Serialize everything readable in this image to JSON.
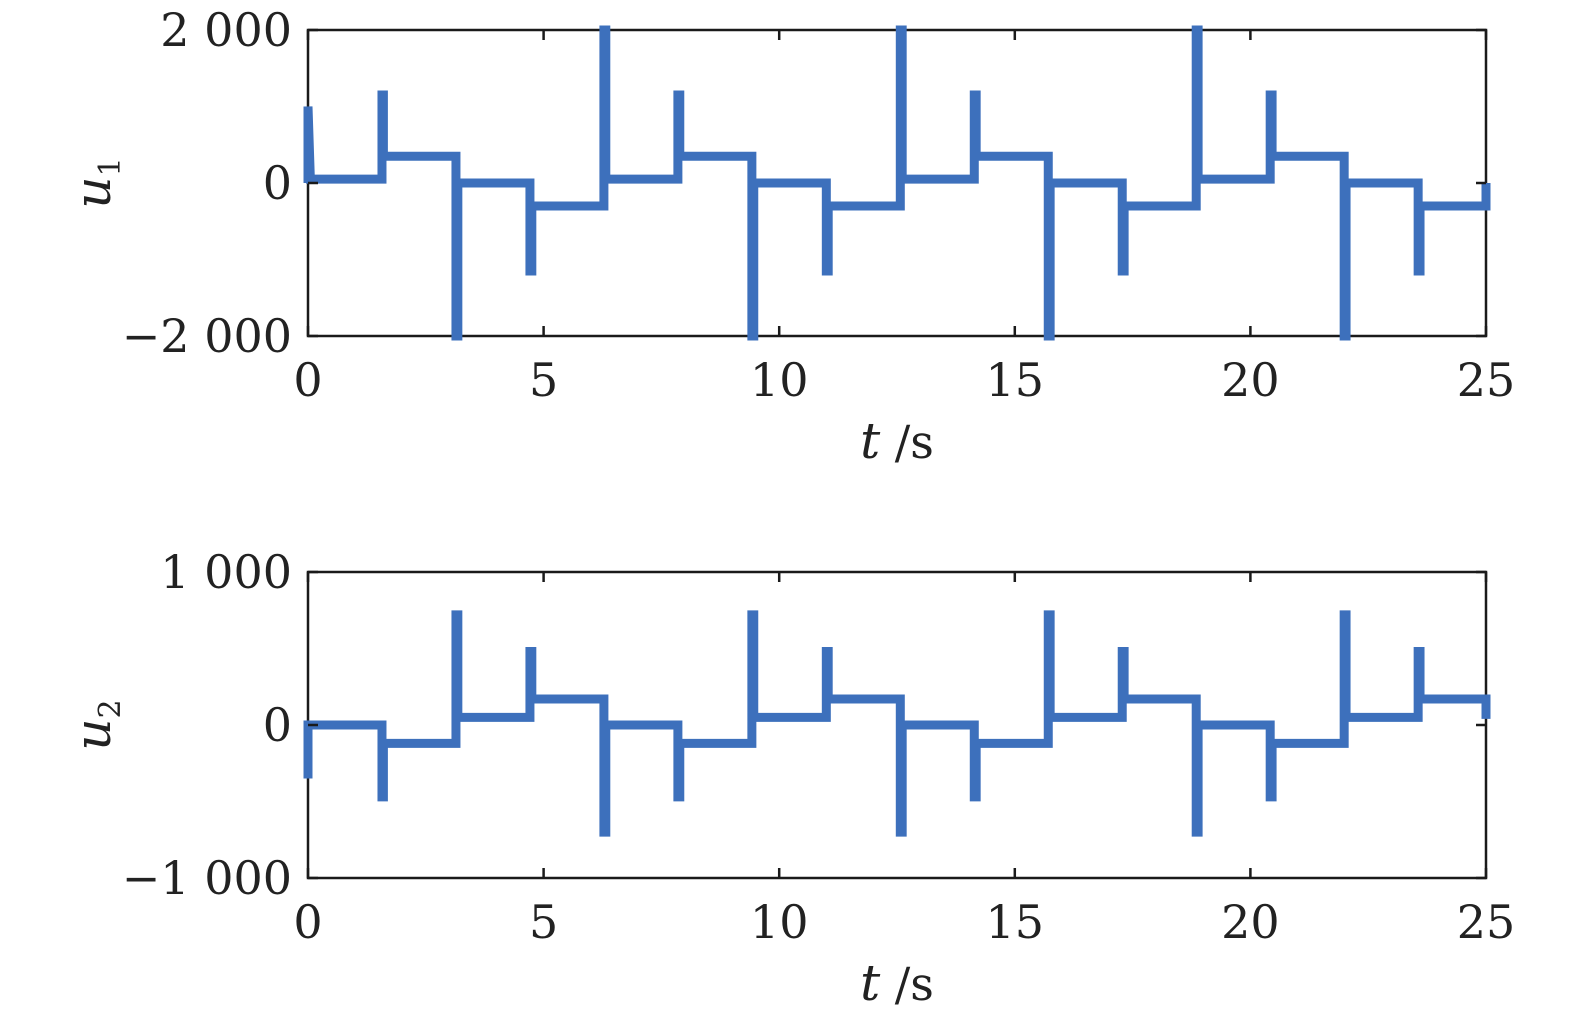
{
  "colors": {
    "series": "#3d70bc",
    "axes": "#1a1a1a",
    "background": "#ffffff"
  },
  "chart_data": [
    {
      "type": "line",
      "ylabel": "u",
      "ylabel_subscript": "1",
      "xlabel": "t /s",
      "xlabel_var": "t",
      "xlabel_unit": " /s",
      "xlim": [
        0,
        25
      ],
      "ylim": [
        -2000,
        2000
      ],
      "xticks": [
        0,
        5,
        10,
        15,
        20,
        25
      ],
      "xtick_labels": [
        "0",
        "5",
        "10",
        "15",
        "20",
        "25"
      ],
      "yticks": [
        -2000,
        0,
        2000
      ],
      "ytick_labels": [
        "−2 000",
        "0",
        "2 000"
      ],
      "grid": false,
      "series": [
        {
          "x": [
            0,
            0,
            0.05,
            1.57,
            1.57,
            1.6,
            1.6,
            3.14,
            3.14,
            3.18,
            3.18,
            4.71,
            4.71,
            4.75,
            4.75,
            6.28,
            6.28,
            6.32,
            6.32,
            7.85,
            7.85,
            7.89,
            7.89,
            9.42,
            9.42,
            9.46,
            9.46,
            11.0,
            11.0,
            11.04,
            11.04,
            12.57,
            12.57,
            12.61,
            12.61,
            14.14,
            14.14,
            14.18,
            14.18,
            15.71,
            15.71,
            15.75,
            15.75,
            17.28,
            17.28,
            17.32,
            17.32,
            18.85,
            18.85,
            18.89,
            18.89,
            20.42,
            20.42,
            20.46,
            20.46,
            21.99,
            21.99,
            22.03,
            22.03,
            23.56,
            23.56,
            23.6,
            23.6,
            25.0,
            25.0
          ],
          "y": [
            0,
            1000,
            50,
            50,
            1150,
            1150,
            350,
            350,
            -2000,
            -2000,
            0,
            0,
            -1150,
            -1150,
            -300,
            -300,
            2000,
            2000,
            50,
            50,
            1150,
            1150,
            350,
            350,
            -2000,
            -2000,
            0,
            0,
            -1150,
            -1150,
            -300,
            -300,
            2000,
            2000,
            50,
            50,
            1150,
            1150,
            350,
            350,
            -2000,
            -2000,
            0,
            0,
            -1150,
            -1150,
            -300,
            -300,
            2000,
            2000,
            50,
            50,
            1150,
            1150,
            350,
            350,
            -2000,
            -2000,
            0,
            0,
            -1150,
            -1150,
            -300,
            -300,
            0
          ]
        }
      ]
    },
    {
      "type": "line",
      "ylabel": "u",
      "ylabel_subscript": "2",
      "xlabel": "t /s",
      "xlabel_var": "t",
      "xlabel_unit": " /s",
      "xlim": [
        0,
        25
      ],
      "ylim": [
        -1000,
        1000
      ],
      "xticks": [
        0,
        5,
        10,
        15,
        20,
        25
      ],
      "xtick_labels": [
        "0",
        "5",
        "10",
        "15",
        "20",
        "25"
      ],
      "yticks": [
        -1000,
        0,
        1000
      ],
      "ytick_labels": [
        "−1 000",
        "0",
        "1 000"
      ],
      "grid": false,
      "series": [
        {
          "x": [
            0,
            0,
            0.05,
            1.57,
            1.57,
            1.6,
            1.6,
            3.14,
            3.14,
            3.18,
            3.18,
            4.71,
            4.71,
            4.75,
            4.75,
            6.28,
            6.28,
            6.32,
            6.32,
            7.85,
            7.85,
            7.89,
            7.89,
            9.42,
            9.42,
            9.46,
            9.46,
            11.0,
            11.0,
            11.04,
            11.04,
            12.57,
            12.57,
            12.61,
            12.61,
            14.14,
            14.14,
            14.18,
            14.18,
            15.71,
            15.71,
            15.75,
            15.75,
            17.28,
            17.28,
            17.32,
            17.32,
            18.85,
            18.85,
            18.89,
            18.89,
            20.42,
            20.42,
            20.46,
            20.46,
            21.99,
            21.99,
            22.03,
            22.03,
            23.56,
            23.56,
            23.6,
            23.6,
            25.0,
            25.0
          ],
          "y": [
            -350,
            0,
            0,
            0,
            -470,
            -470,
            -120,
            -120,
            720,
            720,
            50,
            50,
            480,
            480,
            170,
            170,
            -700,
            -700,
            0,
            0,
            -470,
            -470,
            -120,
            -120,
            720,
            720,
            50,
            50,
            480,
            480,
            170,
            170,
            -700,
            -700,
            0,
            0,
            -470,
            -470,
            -120,
            -120,
            720,
            720,
            50,
            50,
            480,
            480,
            170,
            170,
            -700,
            -700,
            0,
            0,
            -470,
            -470,
            -120,
            -120,
            720,
            720,
            50,
            50,
            480,
            480,
            170,
            170,
            40
          ]
        }
      ]
    }
  ]
}
